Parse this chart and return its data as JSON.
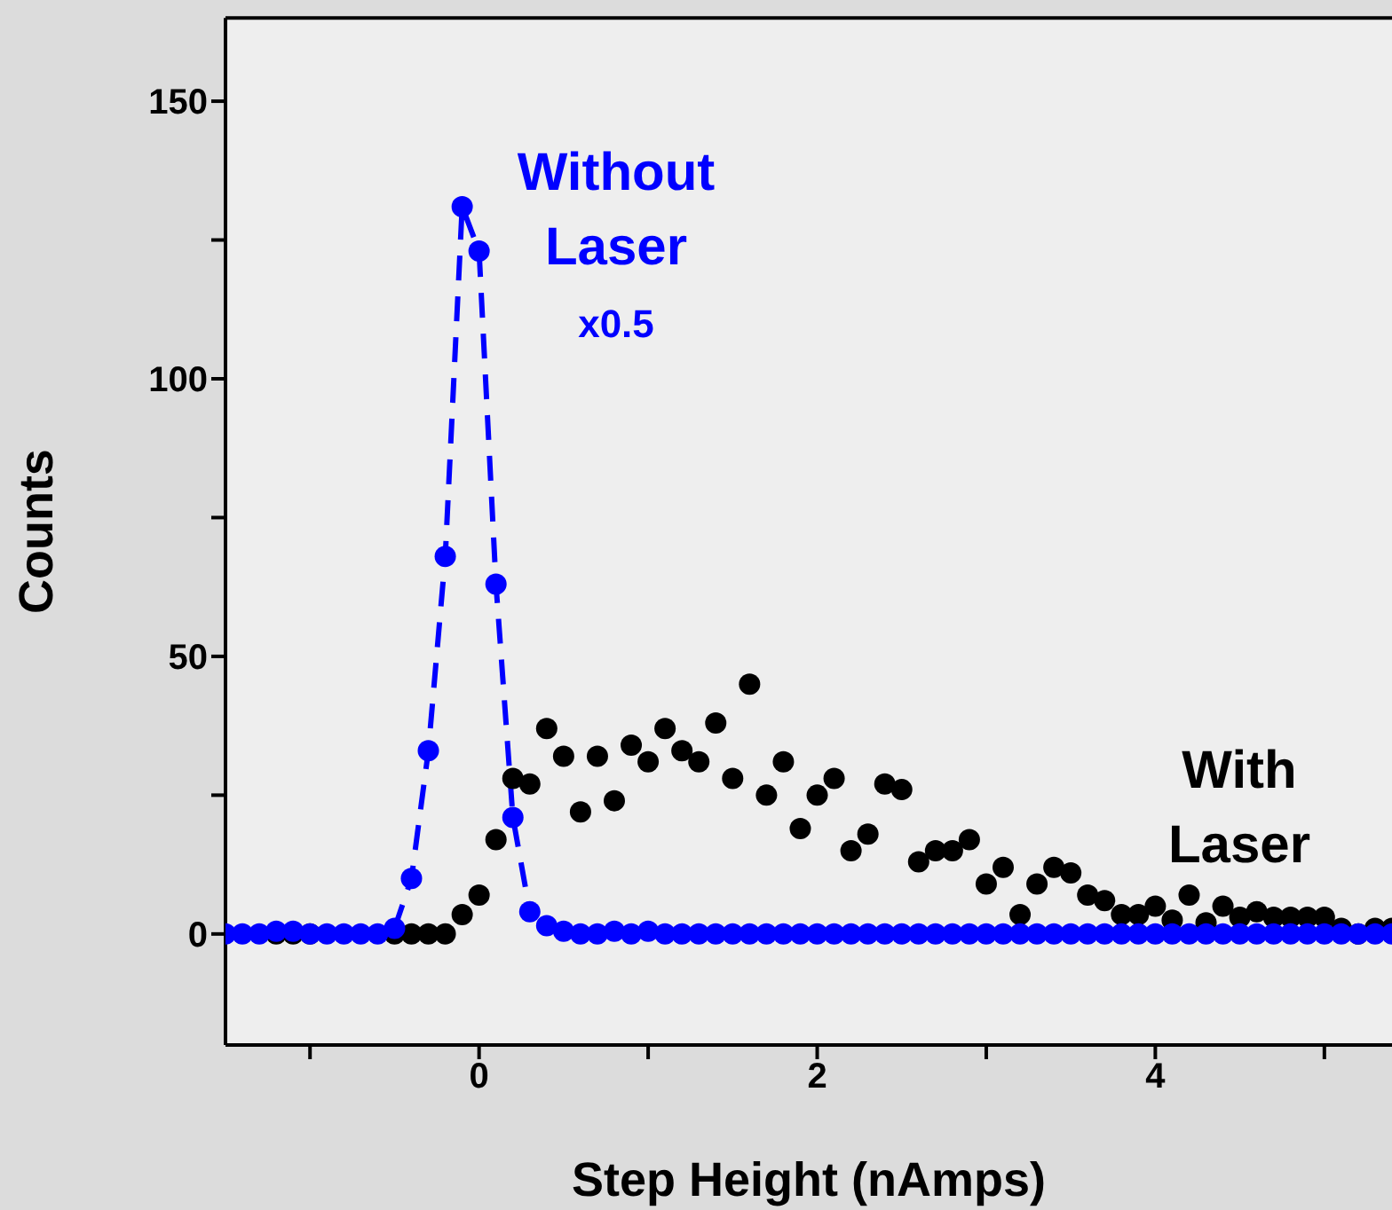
{
  "chart_data": {
    "type": "scatter",
    "xlabel": "Step Height (nAmps)",
    "ylabel": "Counts",
    "xlim": [
      -1.5,
      5.4
    ],
    "ylim": [
      -20,
      165
    ],
    "xticks": [
      {
        "value": -1,
        "label": null
      },
      0,
      {
        "value": 1,
        "label": null
      },
      2,
      {
        "value": 3,
        "label": null
      },
      4,
      {
        "value": 5,
        "label": null
      }
    ],
    "yticks": [
      0,
      {
        "value": 25,
        "label": null
      },
      50,
      {
        "value": 75,
        "label": null
      },
      100,
      {
        "value": 125,
        "label": null
      },
      150
    ],
    "marker": "circle",
    "legend": false,
    "series": [
      {
        "name": "With Laser",
        "color": "#000000",
        "x": [
          -1.2,
          -1.1,
          -1.0,
          -0.9,
          -0.8,
          -0.7,
          -0.6,
          -0.5,
          -0.4,
          -0.3,
          -0.2,
          -0.1,
          0,
          0.1,
          0.2,
          0.3,
          0.4,
          0.5,
          0.6,
          0.7,
          0.8,
          0.9,
          1.0,
          1.1,
          1.2,
          1.3,
          1.4,
          1.5,
          1.6,
          1.7,
          1.8,
          1.9,
          2.0,
          2.1,
          2.2,
          2.3,
          2.4,
          2.5,
          2.6,
          2.7,
          2.8,
          2.9,
          3.0,
          3.1,
          3.2,
          3.3,
          3.4,
          3.5,
          3.6,
          3.7,
          3.8,
          3.9,
          4.0,
          4.1,
          4.2,
          4.3,
          4.4,
          4.5,
          4.6,
          4.7,
          4.8,
          4.9,
          5.0,
          5.1,
          5.2,
          5.3,
          5.4
        ],
        "values": [
          0,
          0,
          0,
          null,
          null,
          null,
          null,
          0,
          0,
          0,
          0,
          3.5,
          7,
          17,
          28,
          27,
          37,
          32,
          22,
          32,
          24,
          34,
          31,
          37,
          33,
          31,
          38,
          28,
          45,
          25,
          31,
          19,
          25,
          28,
          15,
          18,
          27,
          26,
          13,
          15,
          15,
          17,
          9,
          12,
          3.5,
          9,
          12,
          11,
          7,
          6,
          3.5,
          3.5,
          5,
          2.5,
          7,
          2,
          5,
          3,
          4,
          3,
          3,
          3,
          3,
          1,
          0,
          1,
          1
        ]
      },
      {
        "name": "Without Laser",
        "color": "#0000ff",
        "x": [
          -1.5,
          -1.4,
          -1.3,
          -1.2,
          -1.1,
          -1.0,
          -0.9,
          -0.8,
          -0.7,
          -0.6,
          -0.5,
          -0.4,
          -0.3,
          -0.2,
          -0.1,
          0,
          0.1,
          0.2,
          0.3,
          0.4,
          0.5,
          0.6,
          0.7,
          0.8,
          0.9,
          1.0,
          1.1,
          1.2,
          1.3,
          1.4,
          1.5,
          1.6,
          1.7,
          1.8,
          1.9,
          2.0,
          2.1,
          2.2,
          2.3,
          2.4,
          2.5,
          2.6,
          2.7,
          2.8,
          2.9,
          3.0,
          3.1,
          3.2,
          3.3,
          3.4,
          3.5,
          3.6,
          3.7,
          3.8,
          3.9,
          4.0,
          4.1,
          4.2,
          4.3,
          4.4,
          4.5,
          4.6,
          4.7,
          4.8,
          4.9,
          5.0,
          5.1,
          5.2,
          5.3,
          5.4
        ],
        "values": [
          0,
          0,
          0,
          0.5,
          0.5,
          0,
          0,
          0,
          0,
          0,
          1,
          10,
          33,
          68,
          131,
          123,
          63,
          21,
          4,
          1.5,
          0.5,
          0,
          0,
          0.5,
          0,
          0.5,
          0,
          0,
          0,
          0,
          0,
          0,
          0,
          0,
          0,
          0,
          0,
          0,
          0,
          0,
          0,
          0,
          0,
          0,
          0,
          0,
          0,
          0,
          0,
          0,
          0,
          0,
          0,
          0,
          0,
          0,
          0,
          0,
          0,
          0,
          0,
          0,
          0,
          0,
          0,
          0,
          0,
          0,
          0,
          0
        ]
      },
      {
        "type": "line",
        "color": "#0000ff",
        "line_style": "dashed",
        "marker": "none",
        "x": [
          -0.5,
          -0.4,
          -0.3,
          -0.2,
          -0.1,
          0,
          0.1,
          0.2,
          0.3
        ],
        "values": [
          1,
          10,
          33,
          68,
          131,
          123,
          63,
          21,
          4
        ]
      }
    ],
    "annotations": [
      "x0.5"
    ]
  }
}
